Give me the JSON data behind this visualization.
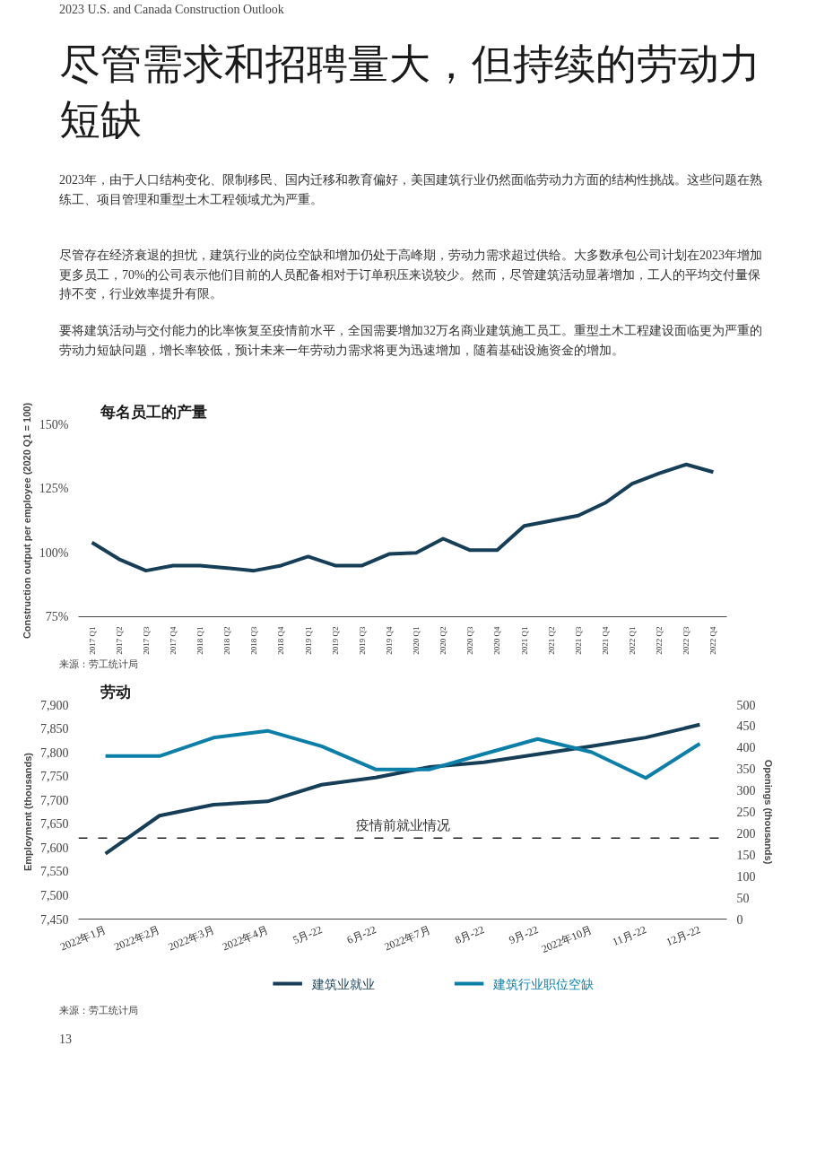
{
  "chart_data": [
    {
      "type": "line",
      "title": "每名员工的产量",
      "ylabel": "Construction output per employee (2020 Q1 = 100)",
      "annotations": [
        "2023 U.S. and Canada Construction Outlook",
        "尽管需求和招聘量大，但持续的劳动力短缺",
        "2023年，由于人口结构变化、限制移民、国内迁移和教育偏好，美国建筑行业仍然面临劳动力方面的结构性挑战。这些问题在熟练工、项目管理和重型土木工程领域尤为严重。",
        "尽管存在经济衰退的担忧，建筑行业的岗位空缺和增加仍处于高峰期，劳动力需求超过供给。大多数承包公司计划在2023年增加更多员工，70%的公司表示他们目前的人员配备相对于订单积压来说较少。然而，尽管建筑活动显著增加，工人的平均交付量保持不变，行业效率提升有限。",
        "要将建筑活动与交付能力的比率恢复至疫情前水平，全国需要增加32万名商业建筑施工员工。重型土木工程建设面临更为严重的劳动力短缺问题，增长率较低，预计未来一年劳动力需求将更为迅速增加，随着基础设施资金的增加。",
        "来源：劳工统计局"
      ],
      "categories": [
        "2017 Q1",
        "2017 Q2",
        "2017 Q3",
        "2017 Q4",
        "2018 Q1",
        "2018 Q2",
        "2018 Q3",
        "2018 Q4",
        "2019 Q1",
        "2019 Q2",
        "2019 Q3",
        "2019 Q4",
        "2020 Q1",
        "2020 Q2",
        "2020 Q3",
        "2020 Q4",
        "2021 Q1",
        "2021 Q2",
        "2021 Q3",
        "2021 Q4",
        "2022 Q1",
        "2022 Q2",
        "2022 Q3",
        "2022 Q4"
      ],
      "series": [
        {
          "color": "#163f57",
          "values": [
            104,
            97.5,
            93,
            95,
            95,
            94,
            93,
            95,
            98.5,
            95,
            95,
            99.5,
            100,
            105.5,
            101,
            101,
            110.5,
            112.5,
            114.5,
            119.5,
            127,
            131,
            134.5,
            131.5
          ]
        }
      ],
      "ylim": [
        75,
        150
      ],
      "yticks": [
        {
          "value": 75,
          "label": "75%"
        },
        {
          "value": 100,
          "label": "100%"
        },
        {
          "value": 125,
          "label": "125%"
        },
        {
          "value": 150,
          "label": "150%"
        }
      ],
      "grid": false,
      "legend": false
    },
    {
      "type": "line",
      "title": "劳动",
      "ylabel": "Employment (thousands)",
      "y2label": "Openings (thousands)",
      "annotations": [
        "来源：劳工统计局",
        "13"
      ],
      "categories": [
        "2022年1月",
        "2022年2月",
        "2022年3月",
        "2022年4月",
        "5月-22",
        "6月-22",
        "2022年7月",
        "8月-22",
        "9月-22",
        "2022年10月",
        "11月-22",
        "12月-22"
      ],
      "series": [
        {
          "name": "建筑业就业",
          "color": "#163f57",
          "values": [
            7587,
            7667,
            7690,
            7697,
            7732,
            7747,
            7769,
            7779,
            7796,
            7813,
            7831,
            7858
          ]
        },
        {
          "name": "建筑行业职位空缺",
          "color": "#0b7fa8",
          "axis": "y2",
          "values": [
            380,
            380,
            423,
            439,
            403,
            349,
            349,
            385,
            420,
            389,
            329,
            409
          ]
        }
      ],
      "ylim": [
        7450,
        7900
      ],
      "yticks": [
        {
          "value": 7450,
          "label": "7,450"
        },
        {
          "value": 7500,
          "label": "7,500"
        },
        {
          "value": 7550,
          "label": "7,550"
        },
        {
          "value": 7600,
          "label": "7,600"
        },
        {
          "value": 7650,
          "label": "7,650"
        },
        {
          "value": 7700,
          "label": "7,700"
        },
        {
          "value": 7750,
          "label": "7,750"
        },
        {
          "value": 7800,
          "label": "7,800"
        },
        {
          "value": 7850,
          "label": "7,850"
        },
        {
          "value": 7900,
          "label": "7,900"
        }
      ],
      "y2lim": [
        0,
        500
      ],
      "y2ticks": [
        0,
        50,
        100,
        150,
        200,
        250,
        300,
        350,
        400,
        450,
        500
      ],
      "ref_lines": [
        {
          "axis": "y",
          "value": 7620,
          "label": "疫情前就业情况",
          "color": "#222222",
          "line_style": "dashed"
        }
      ],
      "grid": false,
      "legend": "bottom"
    }
  ]
}
